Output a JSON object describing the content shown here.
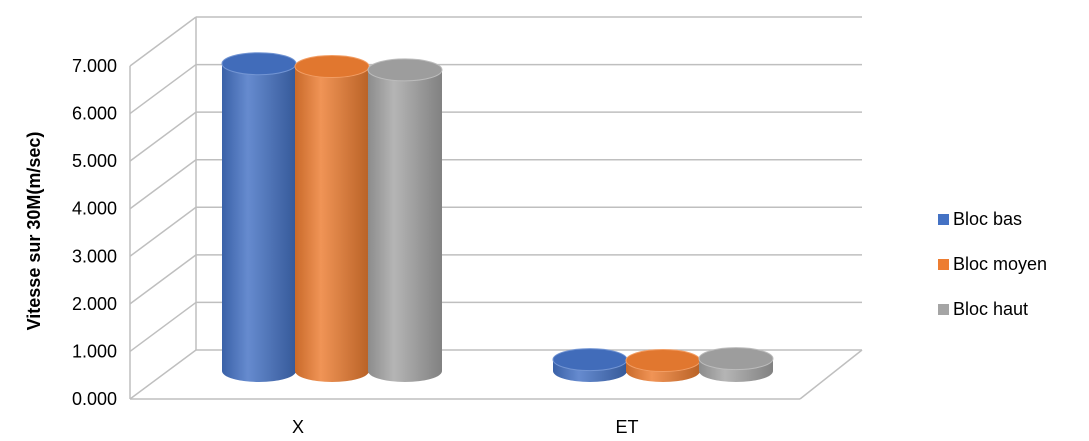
{
  "chart_data": {
    "type": "bar",
    "subtype": "3d-cylinder",
    "title": "",
    "xlabel": "",
    "ylabel": "Vitesse sur 30M(m/sec)",
    "categories": [
      "X",
      "ET"
    ],
    "series": [
      {
        "name": "Bloc bas",
        "values": [
          6.46,
          0.24
        ],
        "color": "#4472C4"
      },
      {
        "name": "Bloc moyen",
        "values": [
          6.4,
          0.22
        ],
        "color": "#ED7D31"
      },
      {
        "name": "Bloc haut",
        "values": [
          6.33,
          0.26
        ],
        "color": "#A5A5A5"
      }
    ],
    "y_ticks": [
      "0.000",
      "1.000",
      "2.000",
      "3.000",
      "4.000",
      "5.000",
      "6.000",
      "7.000"
    ],
    "ylim": [
      0,
      7
    ],
    "grid": true,
    "legend_position": "right"
  }
}
